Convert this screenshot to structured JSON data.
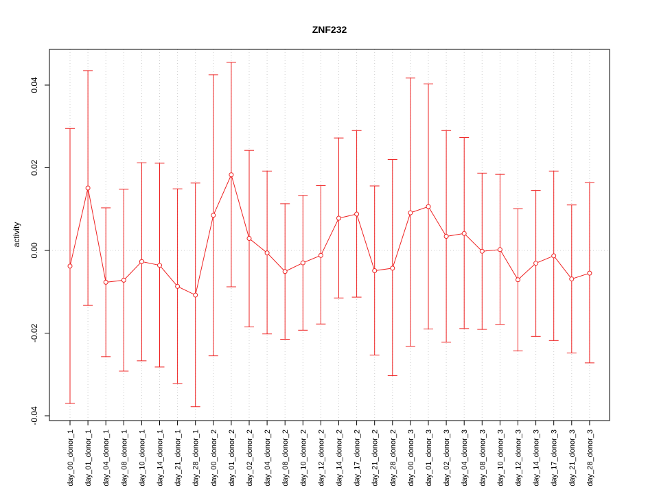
{
  "chart_data": {
    "type": "line",
    "title": "ZNF232",
    "xlabel": "",
    "ylabel": "activity",
    "ylim": [
      -0.042,
      0.049
    ],
    "yticks": [
      -0.04,
      -0.02,
      0.0,
      0.02,
      0.04
    ],
    "ytick_labels": [
      "-0.04",
      "-0.02",
      "0.00",
      "0.02",
      "0.04"
    ],
    "grid": true,
    "series_color": "#ee2222",
    "grid_color": "#cccccc",
    "categories": [
      "day_00_donor_1",
      "day_01_donor_1",
      "day_04_donor_1",
      "day_08_donor_1",
      "day_10_donor_1",
      "day_14_donor_1",
      "day_21_donor_1",
      "day_28_donor_1",
      "day_00_donor_2",
      "day_01_donor_2",
      "day_02_donor_2",
      "day_04_donor_2",
      "day_08_donor_2",
      "day_10_donor_2",
      "day_12_donor_2",
      "day_14_donor_2",
      "day_17_donor_2",
      "day_21_donor_2",
      "day_28_donor_2",
      "day_00_donor_3",
      "day_01_donor_3",
      "day_02_donor_3",
      "day_04_donor_3",
      "day_08_donor_3",
      "day_10_donor_3",
      "day_12_donor_3",
      "day_14_donor_3",
      "day_17_donor_3",
      "day_21_donor_3",
      "day_28_donor_3"
    ],
    "values": [
      -0.0038,
      0.0151,
      -0.0077,
      -0.0072,
      -0.0027,
      -0.0036,
      -0.0087,
      -0.0108,
      0.0085,
      0.0183,
      0.0029,
      -0.0006,
      -0.0051,
      -0.003,
      -0.0012,
      0.0078,
      0.0088,
      -0.0049,
      -0.0043,
      0.0091,
      0.0106,
      0.0034,
      0.0041,
      -0.0002,
      0.0002,
      -0.0071,
      -0.0031,
      -0.0013,
      -0.0069,
      -0.0055
    ],
    "upper": [
      0.0295,
      0.0435,
      0.0103,
      0.0148,
      0.0212,
      0.0211,
      0.0149,
      0.0163,
      0.0425,
      0.0455,
      0.0242,
      0.0192,
      0.0113,
      0.0133,
      0.0157,
      0.0272,
      0.029,
      0.0156,
      0.022,
      0.0417,
      0.0403,
      0.029,
      0.0273,
      0.0187,
      0.0184,
      0.0101,
      0.0145,
      0.0192,
      0.011,
      0.0164
    ],
    "lower": [
      -0.037,
      -0.0133,
      -0.0257,
      -0.0292,
      -0.0267,
      -0.0282,
      -0.0322,
      -0.0378,
      -0.0255,
      -0.0088,
      -0.0185,
      -0.0202,
      -0.0215,
      -0.0193,
      -0.0178,
      -0.0115,
      -0.0113,
      -0.0253,
      -0.0303,
      -0.0232,
      -0.019,
      -0.0222,
      -0.0189,
      -0.0191,
      -0.0179,
      -0.0243,
      -0.0208,
      -0.0218,
      -0.0248,
      -0.0272
    ]
  }
}
